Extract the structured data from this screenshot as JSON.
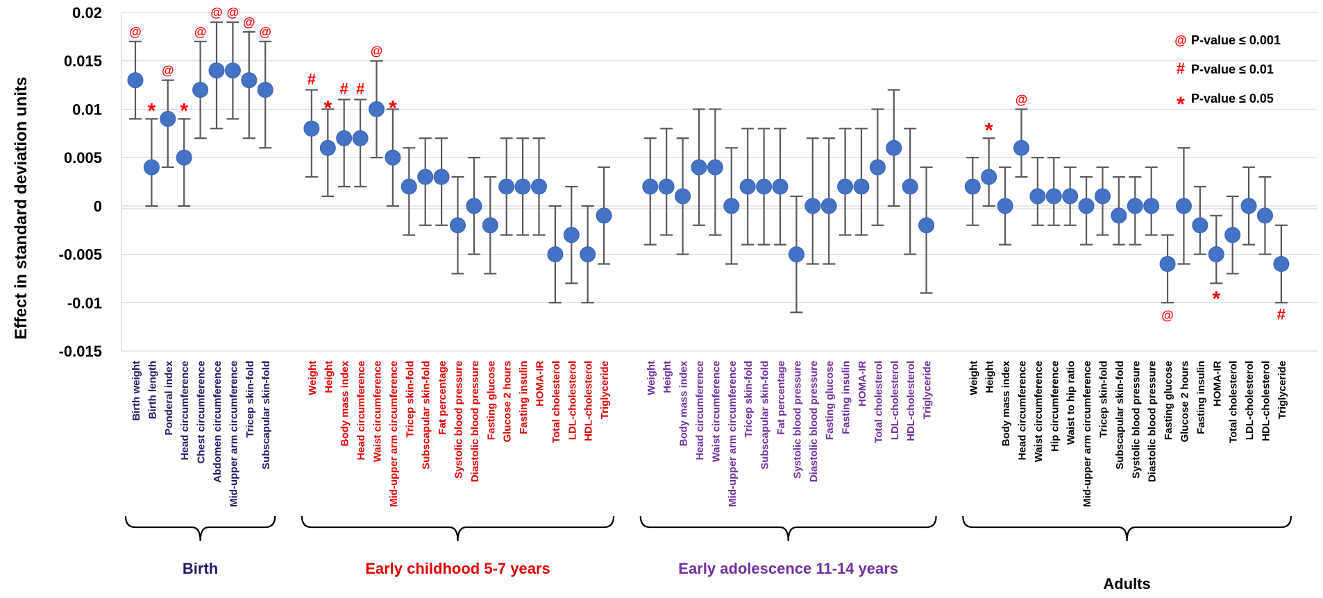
{
  "chart_data": {
    "type": "scatter",
    "ylabel": "Effect in standard deviation units",
    "ylim": [
      -0.015,
      0.02
    ],
    "yticks": [
      "0.02",
      "0.015",
      "0.01",
      "0.005",
      "0",
      "-0.005",
      "-0.01",
      "-0.015"
    ],
    "grid": true,
    "legend_position": "top-right",
    "colors": {
      "point": "#4472C4",
      "errorbar": "#595959",
      "significance": "#FF0000",
      "birth": "#1F1A66",
      "childhood": "#E00000",
      "adolescence": "#7030A0",
      "adults": "#000000"
    },
    "legend": [
      {
        "marker": "@",
        "label": "P-value ≤ 0.001"
      },
      {
        "marker": "#",
        "label": "P-value ≤ 0.01"
      },
      {
        "marker": "*",
        "label": "P-value ≤ 0.05"
      }
    ],
    "groups": [
      {
        "name": "Birth",
        "color_key": "birth",
        "points": [
          {
            "label": "Birth weight",
            "value": 0.013,
            "lower": 0.009,
            "upper": 0.017,
            "sig": "@"
          },
          {
            "label": "Birth length",
            "value": 0.004,
            "lower": 0.0,
            "upper": 0.009,
            "sig": "*"
          },
          {
            "label": "Ponderal index",
            "value": 0.009,
            "lower": 0.004,
            "upper": 0.013,
            "sig": "@"
          },
          {
            "label": "Head circumference",
            "value": 0.005,
            "lower": 0.0,
            "upper": 0.009,
            "sig": "*"
          },
          {
            "label": "Chest circumference",
            "value": 0.012,
            "lower": 0.007,
            "upper": 0.017,
            "sig": "@"
          },
          {
            "label": "Abdomen circumference",
            "value": 0.014,
            "lower": 0.008,
            "upper": 0.019,
            "sig": "@"
          },
          {
            "label": "Mid-upper arm circumference",
            "value": 0.014,
            "lower": 0.009,
            "upper": 0.019,
            "sig": "@"
          },
          {
            "label": "Tricep skin-fold",
            "value": 0.013,
            "lower": 0.007,
            "upper": 0.018,
            "sig": "@"
          },
          {
            "label": "Subscapular skin-fold",
            "value": 0.012,
            "lower": 0.006,
            "upper": 0.017,
            "sig": "@"
          }
        ]
      },
      {
        "name": "Early childhood 5-7 years",
        "color_key": "childhood",
        "points": [
          {
            "label": "Weight",
            "value": 0.008,
            "lower": 0.003,
            "upper": 0.012,
            "sig": "#"
          },
          {
            "label": "Height",
            "value": 0.006,
            "lower": 0.001,
            "upper": 0.01,
            "sig": "*"
          },
          {
            "label": "Body mass index",
            "value": 0.007,
            "lower": 0.002,
            "upper": 0.011,
            "sig": "#"
          },
          {
            "label": "Head circumference",
            "value": 0.007,
            "lower": 0.002,
            "upper": 0.011,
            "sig": "#"
          },
          {
            "label": "Waist circumference",
            "value": 0.01,
            "lower": 0.005,
            "upper": 0.015,
            "sig": "@"
          },
          {
            "label": "Mid-upper arm circumference",
            "value": 0.005,
            "lower": 0.0,
            "upper": 0.01,
            "sig": "*"
          },
          {
            "label": "Tricep skin-fold",
            "value": 0.002,
            "lower": -0.003,
            "upper": 0.006,
            "sig": ""
          },
          {
            "label": "Subscapular skin-fold",
            "value": 0.003,
            "lower": -0.002,
            "upper": 0.007,
            "sig": ""
          },
          {
            "label": "Fat percentage",
            "value": 0.003,
            "lower": -0.002,
            "upper": 0.007,
            "sig": ""
          },
          {
            "label": "Systolic blood pressure",
            "value": -0.002,
            "lower": -0.007,
            "upper": 0.003,
            "sig": ""
          },
          {
            "label": "Diastolic blood pressure",
            "value": 0.0,
            "lower": -0.005,
            "upper": 0.005,
            "sig": ""
          },
          {
            "label": "Fasting glucose",
            "value": -0.002,
            "lower": -0.007,
            "upper": 0.003,
            "sig": ""
          },
          {
            "label": "Glucose 2 hours",
            "value": 0.002,
            "lower": -0.003,
            "upper": 0.007,
            "sig": ""
          },
          {
            "label": "Fasting insulin",
            "value": 0.002,
            "lower": -0.003,
            "upper": 0.007,
            "sig": ""
          },
          {
            "label": "HOMA-IR",
            "value": 0.002,
            "lower": -0.003,
            "upper": 0.007,
            "sig": ""
          },
          {
            "label": "Total cholesterol",
            "value": -0.005,
            "lower": -0.01,
            "upper": 0.0,
            "sig": ""
          },
          {
            "label": "LDL-cholesterol",
            "value": -0.003,
            "lower": -0.008,
            "upper": 0.002,
            "sig": ""
          },
          {
            "label": "HDL-cholesterol",
            "value": -0.005,
            "lower": -0.01,
            "upper": 0.0,
            "sig": ""
          },
          {
            "label": "Triglyceride",
            "value": -0.001,
            "lower": -0.006,
            "upper": 0.004,
            "sig": ""
          }
        ]
      },
      {
        "name": "Early adolescence 11-14 years",
        "color_key": "adolescence",
        "points": [
          {
            "label": "Weight",
            "value": 0.002,
            "lower": -0.004,
            "upper": 0.007,
            "sig": ""
          },
          {
            "label": "Height",
            "value": 0.002,
            "lower": -0.003,
            "upper": 0.008,
            "sig": ""
          },
          {
            "label": "Body mass index",
            "value": 0.001,
            "lower": -0.005,
            "upper": 0.007,
            "sig": ""
          },
          {
            "label": "Head circumference",
            "value": 0.004,
            "lower": -0.002,
            "upper": 0.01,
            "sig": ""
          },
          {
            "label": "Waist circumference",
            "value": 0.004,
            "lower": -0.003,
            "upper": 0.01,
            "sig": ""
          },
          {
            "label": "Mid-upper arm circumference",
            "value": 0.0,
            "lower": -0.006,
            "upper": 0.006,
            "sig": ""
          },
          {
            "label": "Tricep skin-fold",
            "value": 0.002,
            "lower": -0.004,
            "upper": 0.008,
            "sig": ""
          },
          {
            "label": "Subscapular skin-fold",
            "value": 0.002,
            "lower": -0.004,
            "upper": 0.008,
            "sig": ""
          },
          {
            "label": "Fat percentage",
            "value": 0.002,
            "lower": -0.004,
            "upper": 0.008,
            "sig": ""
          },
          {
            "label": "Systolic blood pressure",
            "value": -0.005,
            "lower": -0.011,
            "upper": 0.001,
            "sig": ""
          },
          {
            "label": "Diastolic blood pressure",
            "value": 0.0,
            "lower": -0.006,
            "upper": 0.007,
            "sig": ""
          },
          {
            "label": "Fasting glucose",
            "value": 0.0,
            "lower": -0.006,
            "upper": 0.007,
            "sig": ""
          },
          {
            "label": "Fasting insulin",
            "value": 0.002,
            "lower": -0.003,
            "upper": 0.008,
            "sig": ""
          },
          {
            "label": "HOMA-IR",
            "value": 0.002,
            "lower": -0.003,
            "upper": 0.008,
            "sig": ""
          },
          {
            "label": "Total cholesterol",
            "value": 0.004,
            "lower": -0.002,
            "upper": 0.01,
            "sig": ""
          },
          {
            "label": "LDL-cholesterol",
            "value": 0.006,
            "lower": 0.0,
            "upper": 0.012,
            "sig": ""
          },
          {
            "label": "HDL-cholesterol",
            "value": 0.002,
            "lower": -0.005,
            "upper": 0.008,
            "sig": ""
          },
          {
            "label": "Triglyceride",
            "value": -0.002,
            "lower": -0.009,
            "upper": 0.004,
            "sig": ""
          }
        ]
      },
      {
        "name": "Adults",
        "color_key": "adults",
        "points": [
          {
            "label": "Weight",
            "value": 0.002,
            "lower": -0.002,
            "upper": 0.005,
            "sig": ""
          },
          {
            "label": "Height",
            "value": 0.003,
            "lower": 0.0,
            "upper": 0.007,
            "sig": "*"
          },
          {
            "label": "Body mass index",
            "value": 0.0,
            "lower": -0.004,
            "upper": 0.004,
            "sig": ""
          },
          {
            "label": "Head circumference",
            "value": 0.006,
            "lower": 0.003,
            "upper": 0.01,
            "sig": "@"
          },
          {
            "label": "Waist circumference",
            "value": 0.001,
            "lower": -0.002,
            "upper": 0.005,
            "sig": ""
          },
          {
            "label": "Hip circumference",
            "value": 0.001,
            "lower": -0.002,
            "upper": 0.005,
            "sig": ""
          },
          {
            "label": "Waist to hip ratio",
            "value": 0.001,
            "lower": -0.002,
            "upper": 0.004,
            "sig": ""
          },
          {
            "label": "Mid-upper arm circumference",
            "value": 0.0,
            "lower": -0.004,
            "upper": 0.003,
            "sig": ""
          },
          {
            "label": "Tricep skin-fold",
            "value": 0.001,
            "lower": -0.003,
            "upper": 0.004,
            "sig": ""
          },
          {
            "label": "Subscapular skin-fold",
            "value": -0.001,
            "lower": -0.004,
            "upper": 0.003,
            "sig": ""
          },
          {
            "label": "Systolic blood pressure",
            "value": 0.0,
            "lower": -0.004,
            "upper": 0.003,
            "sig": ""
          },
          {
            "label": "Diastolic blood pressure",
            "value": 0.0,
            "lower": -0.003,
            "upper": 0.004,
            "sig": ""
          },
          {
            "label": "Fasting glucose",
            "value": -0.006,
            "lower": -0.01,
            "upper": -0.003,
            "sig": "@"
          },
          {
            "label": "Glucose 2 hours",
            "value": 0.0,
            "lower": -0.006,
            "upper": 0.006,
            "sig": ""
          },
          {
            "label": "Fasting insulin",
            "value": -0.002,
            "lower": -0.005,
            "upper": 0.002,
            "sig": ""
          },
          {
            "label": "HOMA-IR",
            "value": -0.005,
            "lower": -0.008,
            "upper": -0.001,
            "sig": "*"
          },
          {
            "label": "Total cholesterol",
            "value": -0.003,
            "lower": -0.007,
            "upper": 0.001,
            "sig": ""
          },
          {
            "label": "LDL-cholesterol",
            "value": 0.0,
            "lower": -0.004,
            "upper": 0.004,
            "sig": ""
          },
          {
            "label": "HDL-cholesterol",
            "value": -0.001,
            "lower": -0.005,
            "upper": 0.003,
            "sig": ""
          },
          {
            "label": "Triglyceride",
            "value": -0.006,
            "lower": -0.01,
            "upper": -0.002,
            "sig": "#"
          }
        ]
      }
    ]
  }
}
